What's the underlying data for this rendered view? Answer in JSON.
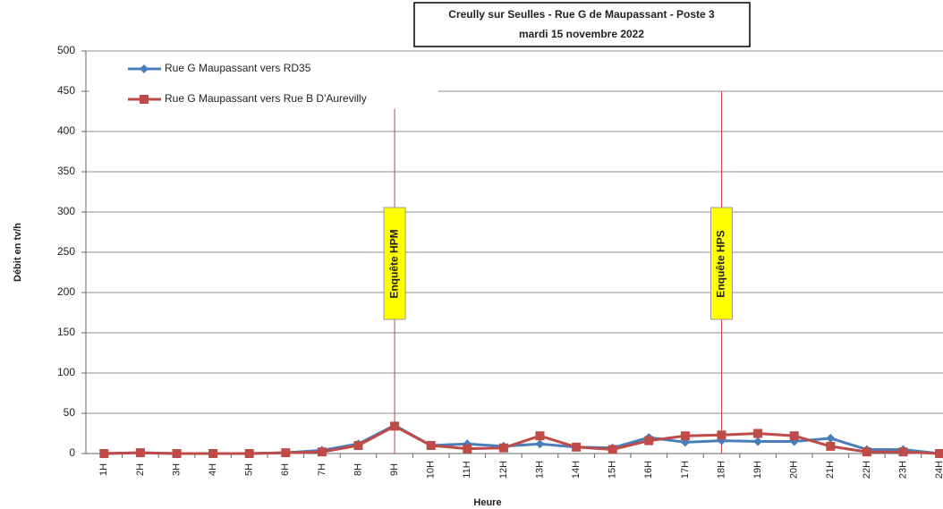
{
  "chart_data": {
    "type": "line",
    "title": [
      "Creully sur Seulles - Rue G de Maupassant - Poste 3",
      "mardi 15 novembre 2022"
    ],
    "x_label": "Heure",
    "y_label": "Débit en tv/h",
    "categories": [
      "1H",
      "2H",
      "3H",
      "4H",
      "5H",
      "6H",
      "7H",
      "8H",
      "9H",
      "10H",
      "11H",
      "12H",
      "13H",
      "14H",
      "15H",
      "16H",
      "17H",
      "18H",
      "19H",
      "20H",
      "21H",
      "22H",
      "23H",
      "24H"
    ],
    "series": [
      {
        "name": "Rue G Maupassant vers RD35",
        "color": "#4a7ebb",
        "marker": "diamond",
        "values": [
          0,
          1,
          0,
          0,
          0,
          1,
          4,
          12,
          35,
          10,
          12,
          9,
          12,
          8,
          7,
          20,
          14,
          16,
          15,
          15,
          19,
          5,
          5,
          0
        ]
      },
      {
        "name": "Rue G Maupassant vers Rue B D'Aurevilly",
        "color": "#be4b48",
        "marker": "square",
        "values": [
          0,
          1,
          0,
          0,
          0,
          1,
          2,
          10,
          34,
          10,
          6,
          7,
          22,
          8,
          5,
          16,
          22,
          23,
          25,
          22,
          9,
          2,
          2,
          0
        ]
      }
    ],
    "annotations": [
      {
        "text": "Enquête HPM",
        "x": "9H"
      },
      {
        "text": "Enquête HPS",
        "x": "18H"
      }
    ],
    "ylim": [
      0,
      500
    ],
    "yticks": [
      0,
      50,
      100,
      150,
      200,
      250,
      300,
      350,
      400,
      450,
      500
    ],
    "grid": true,
    "legend": "top-left"
  }
}
